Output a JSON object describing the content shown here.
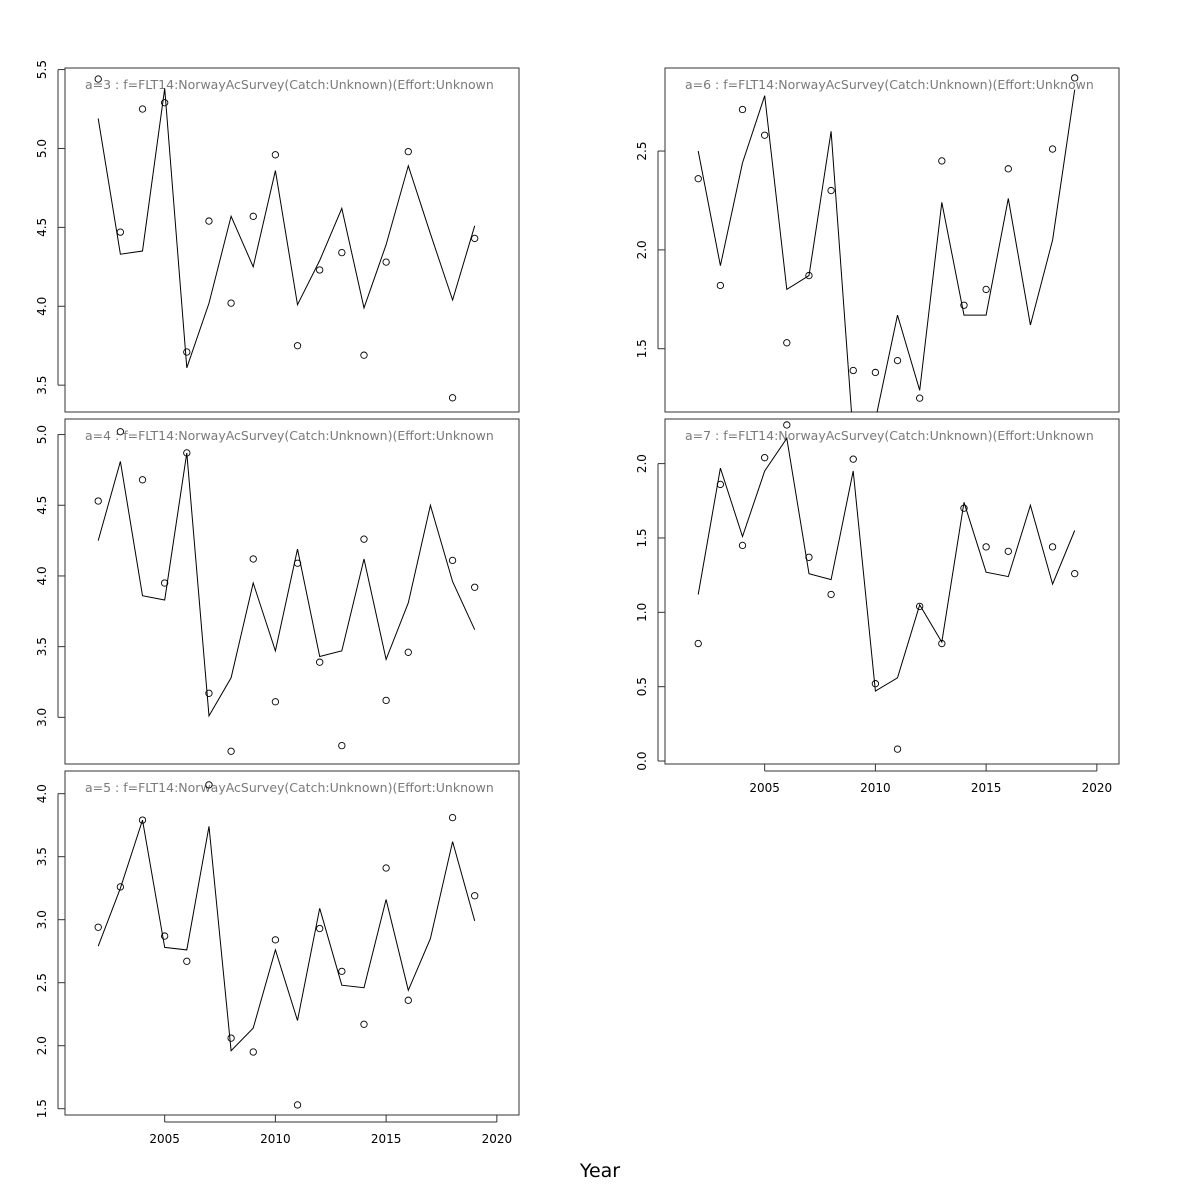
{
  "figure": {
    "xlabel": "Year"
  },
  "chart_data": [
    {
      "type": "line",
      "title": "a=3  :  f=FLT14:NorwayAcSurvey(Catch:Unknown)(Effort:Unknown",
      "xlim": [
        2000.5,
        2021.0
      ],
      "ylim": [
        3.33,
        5.51
      ],
      "yticks": [
        "3.5",
        "4.0",
        "4.5",
        "5.0",
        "5.5"
      ],
      "xticks": [],
      "fitted": {
        "x": [
          2002,
          2003,
          2004,
          2005,
          2006,
          2007,
          2008,
          2009,
          2010,
          2011,
          2012,
          2013,
          2014,
          2015,
          2016,
          2017,
          2018,
          2019
        ],
        "y": [
          5.19,
          4.33,
          4.35,
          5.38,
          3.61,
          4.02,
          4.57,
          4.25,
          4.86,
          4.01,
          4.29,
          4.62,
          3.99,
          4.39,
          4.89,
          4.46,
          4.04,
          4.51
        ]
      },
      "observed": {
        "x": [
          2002,
          2003,
          2004,
          2005,
          2006,
          2007,
          2008,
          2009,
          2010,
          2011,
          2012,
          2013,
          2014,
          2015,
          2016,
          2018,
          2019
        ],
        "y": [
          5.44,
          4.47,
          5.25,
          5.29,
          3.71,
          4.54,
          4.02,
          4.57,
          4.96,
          3.75,
          4.23,
          4.34,
          3.69,
          4.28,
          4.98,
          3.42,
          4.43
        ]
      }
    },
    {
      "type": "line",
      "title": "a=4  :  f=FLT14:NorwayAcSurvey(Catch:Unknown)(Effort:Unknown",
      "xlim": [
        2000.5,
        2021.0
      ],
      "ylim": [
        2.67,
        5.11
      ],
      "yticks": [
        "3.0",
        "3.5",
        "4.0",
        "4.5",
        "5.0"
      ],
      "xticks": [],
      "fitted": {
        "x": [
          2002,
          2003,
          2004,
          2005,
          2006,
          2007,
          2008,
          2009,
          2010,
          2011,
          2012,
          2013,
          2014,
          2015,
          2016,
          2017,
          2018,
          2019
        ],
        "y": [
          4.25,
          4.81,
          3.86,
          3.83,
          4.87,
          3.01,
          3.28,
          3.95,
          3.47,
          4.19,
          3.43,
          3.47,
          4.12,
          3.41,
          3.81,
          4.5,
          3.96,
          3.62
        ]
      },
      "observed": {
        "x": [
          2002,
          2003,
          2004,
          2005,
          2006,
          2007,
          2008,
          2009,
          2010,
          2011,
          2012,
          2013,
          2014,
          2015,
          2016,
          2018,
          2019
        ],
        "y": [
          4.53,
          5.02,
          4.68,
          3.95,
          4.87,
          3.17,
          2.76,
          4.12,
          3.11,
          4.09,
          3.39,
          2.8,
          4.26,
          3.12,
          3.46,
          4.11,
          3.92
        ]
      }
    },
    {
      "type": "line",
      "title": "a=5  :  f=FLT14:NorwayAcSurvey(Catch:Unknown)(Effort:Unknown",
      "xlim": [
        2000.5,
        2021.0
      ],
      "ylim": [
        1.45,
        4.18
      ],
      "yticks": [
        "1.5",
        "2.0",
        "2.5",
        "3.0",
        "3.5",
        "4.0"
      ],
      "xticks": [
        "2005",
        "2010",
        "2015",
        "2020"
      ],
      "fitted": {
        "x": [
          2002,
          2003,
          2004,
          2005,
          2006,
          2007,
          2008,
          2009,
          2010,
          2011,
          2012,
          2013,
          2014,
          2015,
          2016,
          2017,
          2018,
          2019
        ],
        "y": [
          2.79,
          3.25,
          3.79,
          2.78,
          2.76,
          3.74,
          1.96,
          2.14,
          2.76,
          2.2,
          3.09,
          2.48,
          2.46,
          3.16,
          2.44,
          2.85,
          3.62,
          2.99
        ]
      },
      "observed": {
        "x": [
          2002,
          2003,
          2004,
          2005,
          2006,
          2007,
          2008,
          2009,
          2010,
          2011,
          2012,
          2013,
          2014,
          2015,
          2016,
          2018,
          2019
        ],
        "y": [
          2.94,
          3.26,
          3.79,
          2.87,
          2.67,
          4.07,
          2.06,
          1.95,
          2.84,
          1.53,
          2.93,
          2.59,
          2.17,
          3.41,
          2.36,
          3.81,
          3.19
        ]
      }
    },
    {
      "type": "line",
      "title": "a=6  :  f=FLT14:NorwayAcSurvey(Catch:Unknown)(Effort:Unknown",
      "xlim": [
        2000.5,
        2021.0
      ],
      "ylim": [
        1.18,
        2.92
      ],
      "yticks": [
        "1.5",
        "2.0",
        "2.5"
      ],
      "xticks": [],
      "fitted": {
        "x": [
          2002,
          2003,
          2004,
          2005,
          2006,
          2007,
          2008,
          2009,
          2010,
          2011,
          2012,
          2013,
          2014,
          2015,
          2016,
          2017,
          2018,
          2019
        ],
        "y": [
          2.5,
          1.92,
          2.44,
          2.78,
          1.8,
          1.87,
          2.6,
          1.06,
          1.14,
          1.67,
          1.29,
          2.24,
          1.67,
          1.67,
          2.26,
          1.62,
          2.05,
          2.81
        ]
      },
      "observed": {
        "x": [
          2002,
          2003,
          2004,
          2005,
          2006,
          2007,
          2008,
          2009,
          2010,
          2011,
          2012,
          2013,
          2014,
          2015,
          2016,
          2018,
          2019
        ],
        "y": [
          2.36,
          1.82,
          2.71,
          2.58,
          1.53,
          1.87,
          2.3,
          1.39,
          1.38,
          1.44,
          1.25,
          2.45,
          1.72,
          1.8,
          2.41,
          2.51,
          2.87
        ]
      }
    },
    {
      "type": "line",
      "title": "a=7  :  f=FLT14:NorwayAcSurvey(Catch:Unknown)(Effort:Unknown",
      "xlim": [
        2000.5,
        2021.0
      ],
      "ylim": [
        -0.02,
        2.3
      ],
      "yticks": [
        "0.0",
        "0.5",
        "1.0",
        "1.5",
        "2.0"
      ],
      "xticks": [
        "2005",
        "2010",
        "2015",
        "2020"
      ],
      "fitted": {
        "x": [
          2002,
          2003,
          2004,
          2005,
          2006,
          2007,
          2008,
          2009,
          2010,
          2011,
          2012,
          2013,
          2014,
          2015,
          2016,
          2017,
          2018,
          2019
        ],
        "y": [
          1.12,
          1.97,
          1.51,
          1.95,
          2.17,
          1.26,
          1.22,
          1.95,
          0.47,
          0.56,
          1.05,
          0.8,
          1.74,
          1.27,
          1.24,
          1.72,
          1.19,
          1.55
        ]
      },
      "observed": {
        "x": [
          2002,
          2003,
          2004,
          2005,
          2006,
          2007,
          2008,
          2009,
          2010,
          2011,
          2012,
          2013,
          2014,
          2015,
          2016,
          2018,
          2019
        ],
        "y": [
          0.79,
          1.86,
          1.45,
          2.04,
          2.26,
          1.37,
          1.12,
          2.03,
          0.52,
          0.08,
          1.04,
          0.79,
          1.7,
          1.44,
          1.41,
          1.44,
          1.26
        ]
      }
    }
  ]
}
